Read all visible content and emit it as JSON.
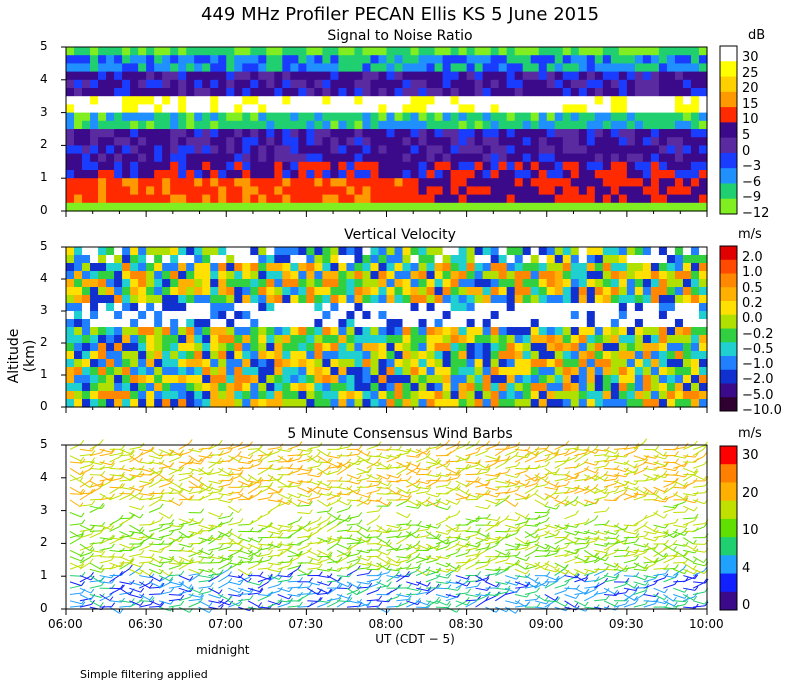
{
  "title": "449 MHz Profiler PECAN Ellis KS  5 June 2015",
  "chart_data": [
    {
      "type": "heatmap",
      "title": "Signal to Noise Ratio",
      "units": "dB",
      "xlim": [
        "06:00",
        "10:00"
      ],
      "ylim": [
        0,
        5
      ],
      "colorbar_labels": [
        "30",
        "25",
        "20",
        "15",
        "10",
        "5",
        "0",
        "−3",
        "−6",
        "−9",
        "−12"
      ],
      "colorbar_colors": [
        "#ffffff",
        "#ffff00",
        "#ffd000",
        "#ff9900",
        "#ff2a00",
        "#3a0a8a",
        "#5a2aa0",
        "#1a3cff",
        "#2090ff",
        "#20d070",
        "#80ee20"
      ]
    },
    {
      "type": "heatmap",
      "title": "Vertical Velocity",
      "units": "m/s",
      "xlim": [
        "06:00",
        "10:00"
      ],
      "ylim": [
        0,
        5
      ],
      "colorbar_labels": [
        "2.0",
        "1.0",
        "0.5",
        "0.2",
        "0.0",
        "−0.2",
        "−0.5",
        "−1.0",
        "−2.0",
        "−5.0",
        "−10.0"
      ],
      "colorbar_colors": [
        "#e00000",
        "#ff4a00",
        "#ff8800",
        "#ffb000",
        "#ffe000",
        "#b0e000",
        "#30d040",
        "#20d0d0",
        "#2080ff",
        "#1030d0",
        "#3a0a8a",
        "#300030"
      ]
    },
    {
      "type": "scatter",
      "title": "5 Minute Consensus Wind Barbs",
      "units": "m/s",
      "xlim": [
        "06:00",
        "10:00"
      ],
      "ylim": [
        0,
        5
      ],
      "colorbar_labels": [
        "30",
        "20",
        "10",
        "4",
        "0"
      ],
      "colorbar_colors": [
        "#ff0000",
        "#ff8000",
        "#ffb000",
        "#c0e000",
        "#60e000",
        "#20d070",
        "#20a0ff",
        "#1020ff",
        "#3a0a8a"
      ]
    }
  ],
  "axes": {
    "yticks": [
      "0",
      "1",
      "2",
      "3",
      "4",
      "5"
    ],
    "xticks": [
      "06:00",
      "06:30",
      "07:00",
      "07:30",
      "08:00",
      "08:30",
      "09:00",
      "09:30",
      "10:00"
    ],
    "ylabel": "Altitude (km)",
    "xlabel": "UT  (CDT − 5)",
    "midnight_label": "midnight"
  },
  "footnote": "Simple filtering applied"
}
